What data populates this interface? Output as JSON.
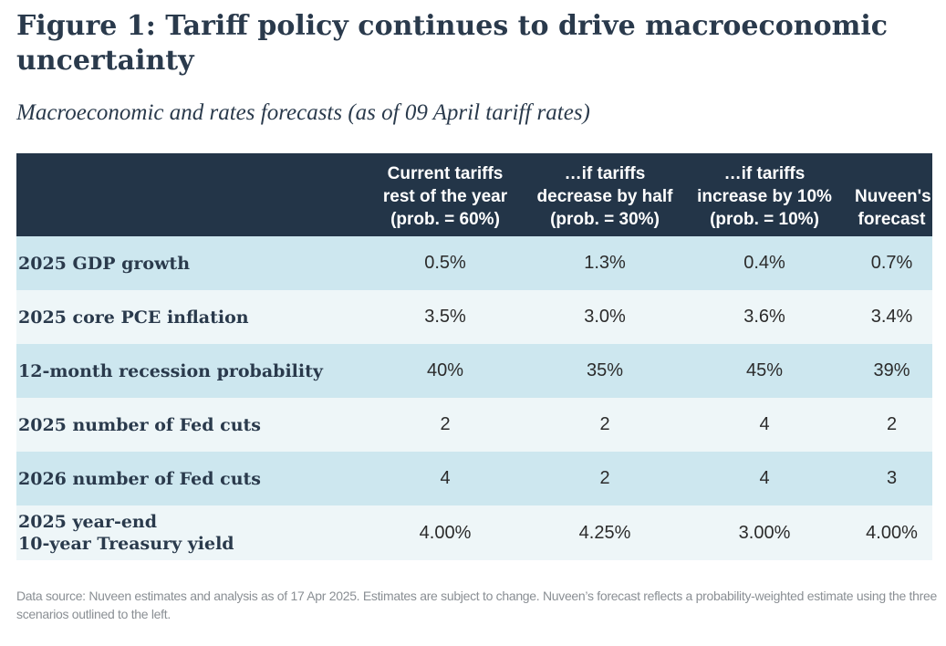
{
  "title": "Figure 1: Tariff policy continues to drive macroeconomic uncertainty",
  "subtitle": "Macroeconomic and rates forecasts (as of 09 April tariff rates)",
  "colors": {
    "header_bg": "#233548",
    "row_shade": "#cde7ef",
    "row_light": "#eef6f8"
  },
  "chart_data": {
    "type": "table",
    "columns": [
      "",
      "Current tariffs\nrest of the year\n(prob. = 60%)",
      "…if tariffs\ndecrease by half\n(prob. = 30%)",
      "…if tariffs\nincrease by 10%\n(prob. = 10%)",
      "Nuveen's\nforecast"
    ],
    "rows": [
      {
        "label": "2025 GDP growth",
        "values": [
          "0.5%",
          "1.3%",
          "0.4%",
          "0.7%"
        ]
      },
      {
        "label": "2025 core PCE inflation",
        "values": [
          "3.5%",
          "3.0%",
          "3.6%",
          "3.4%"
        ]
      },
      {
        "label": "12-month recession probability",
        "values": [
          "40%",
          "35%",
          "45%",
          "39%"
        ]
      },
      {
        "label": "2025 number of Fed cuts",
        "values": [
          "2",
          "2",
          "4",
          "2"
        ]
      },
      {
        "label": "2026 number of Fed cuts",
        "values": [
          "4",
          "2",
          "4",
          "3"
        ]
      },
      {
        "label": "2025 year-end\n10-year Treasury yield",
        "values": [
          "4.00%",
          "4.25%",
          "3.00%",
          "4.00%"
        ]
      }
    ]
  },
  "source": "Data source: Nuveen estimates and analysis as of 17 Apr 2025. Estimates are subject to change. Nuveen’s forecast reflects a probability-weighted estimate using the three scenarios outlined to the left."
}
